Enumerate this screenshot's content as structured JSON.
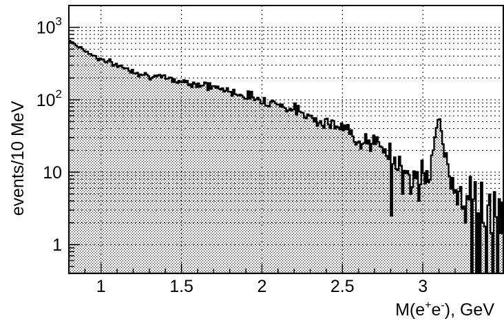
{
  "chart_data": {
    "type": "histogram",
    "title": "",
    "xlabel": "M(e+e-), GeV",
    "xlabel_parts": {
      "prefix": "M(e",
      "sup1": "+",
      "mid": "e",
      "sup2": "-",
      "suffix": "), GeV"
    },
    "ylabel": "events/10 MeV",
    "xlim": [
      0.8,
      3.5
    ],
    "ylim": [
      0.4,
      2000
    ],
    "yscale": "log",
    "bin_width": 0.01,
    "grid": true,
    "legend": "none",
    "x_ticks": [
      {
        "value": 1,
        "label": "1"
      },
      {
        "value": 1.5,
        "label": "1.5"
      },
      {
        "value": 2,
        "label": "2"
      },
      {
        "value": 2.5,
        "label": "2.5"
      },
      {
        "value": 3,
        "label": "3"
      }
    ],
    "y_ticks": [
      {
        "value": 1,
        "label": "1"
      },
      {
        "value": 10,
        "label": "10"
      },
      {
        "value": 100,
        "base": "10",
        "exp": "2"
      },
      {
        "value": 1000,
        "base": "10",
        "exp": "3"
      }
    ],
    "shape": [
      {
        "x": 0.8,
        "y": 680
      },
      {
        "x": 0.85,
        "y": 560
      },
      {
        "x": 0.9,
        "y": 480
      },
      {
        "x": 0.95,
        "y": 410
      },
      {
        "x": 1.0,
        "y": 360
      },
      {
        "x": 1.1,
        "y": 300
      },
      {
        "x": 1.2,
        "y": 250
      },
      {
        "x": 1.3,
        "y": 215
      },
      {
        "x": 1.4,
        "y": 195
      },
      {
        "x": 1.5,
        "y": 180
      },
      {
        "x": 1.6,
        "y": 165
      },
      {
        "x": 1.7,
        "y": 150
      },
      {
        "x": 1.8,
        "y": 130
      },
      {
        "x": 1.9,
        "y": 115
      },
      {
        "x": 2.0,
        "y": 100
      },
      {
        "x": 2.1,
        "y": 88
      },
      {
        "x": 2.2,
        "y": 72
      },
      {
        "x": 2.3,
        "y": 60
      },
      {
        "x": 2.4,
        "y": 48
      },
      {
        "x": 2.5,
        "y": 40
      },
      {
        "x": 2.6,
        "y": 30
      },
      {
        "x": 2.7,
        "y": 24
      },
      {
        "x": 2.8,
        "y": 17
      },
      {
        "x": 2.9,
        "y": 11
      },
      {
        "x": 3.0,
        "y": 8
      },
      {
        "x": 3.05,
        "y": 10
      },
      {
        "x": 3.08,
        "y": 35
      },
      {
        "x": 3.1,
        "y": 60
      },
      {
        "x": 3.12,
        "y": 30
      },
      {
        "x": 3.15,
        "y": 12
      },
      {
        "x": 3.2,
        "y": 6
      },
      {
        "x": 3.3,
        "y": 4
      },
      {
        "x": 3.4,
        "y": 3
      },
      {
        "x": 3.5,
        "y": 2.5
      }
    ],
    "notable_dips": [
      {
        "x": 2.81,
        "y": 2.5
      },
      {
        "x": 2.87,
        "y": 5
      },
      {
        "x": 2.92,
        "y": 5
      },
      {
        "x": 2.97,
        "y": 4
      },
      {
        "x": 3.26,
        "y": 2
      },
      {
        "x": 3.3,
        "y": 0.4
      },
      {
        "x": 3.33,
        "y": 0.4
      },
      {
        "x": 3.36,
        "y": 0.4
      },
      {
        "x": 3.39,
        "y": 0.4
      },
      {
        "x": 3.43,
        "y": 0.4
      },
      {
        "x": 3.46,
        "y": 0.4
      }
    ],
    "fill": "dotted",
    "line_color": "#000000"
  }
}
